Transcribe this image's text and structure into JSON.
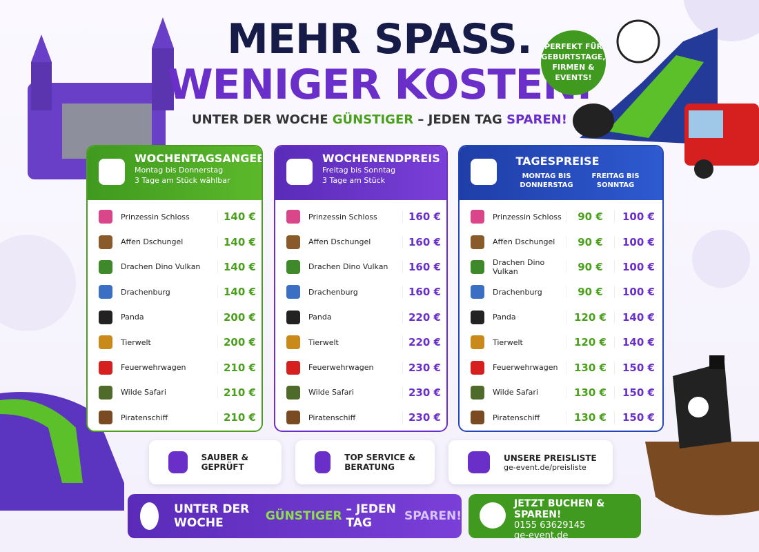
{
  "header": {
    "title_line1": "MEHR SPASS.",
    "title_line2": "WENIGER KOSTEN.",
    "subtitle": [
      "UNTER DER WOCHE",
      "GÜNSTIGER",
      "– JEDEN TAG",
      "SPAREN!"
    ]
  },
  "badge": [
    "PERFEKT FÜR",
    "GEBURTSTAGE,",
    "FIRMEN &",
    "EVENTS!"
  ],
  "panels": [
    {
      "title": "WOCHENTAGSANGEBOT",
      "lines": [
        "Montag bis Donnerstag",
        "3 Tage am Stück wählbar"
      ],
      "rows": [
        [
          "Prinzessin Schloss",
          "140 €"
        ],
        [
          "Affen Dschungel",
          "140 €"
        ],
        [
          "Drachen Dino Vulkan",
          "140 €"
        ],
        [
          "Drachenburg",
          "140 €"
        ],
        [
          "Panda",
          "200 €"
        ],
        [
          "Tierwelt",
          "200 €"
        ],
        [
          "Feuerwehrwagen",
          "210 €"
        ],
        [
          "Wilde Safari",
          "210 €"
        ],
        [
          "Piratenschiff",
          "210 €"
        ]
      ]
    },
    {
      "title": "WOCHENENDPREIS",
      "lines": [
        "Freitag bis Sonntag",
        "3 Tage am Stück"
      ],
      "rows": [
        [
          "Prinzessin Schloss",
          "160 €"
        ],
        [
          "Affen Dschungel",
          "160 €"
        ],
        [
          "Drachen Dino Vulkan",
          "160 €"
        ],
        [
          "Drachenburg",
          "160 €"
        ],
        [
          "Panda",
          "220 €"
        ],
        [
          "Tierwelt",
          "220 €"
        ],
        [
          "Feuerwehrwagen",
          "230 €"
        ],
        [
          "Wilde Safari",
          "230 €"
        ],
        [
          "Piratenschiff",
          "230 €"
        ]
      ]
    },
    {
      "title": "TAGESPREISE",
      "columns": [
        "MONTAG BIS DONNERSTAG",
        "FREITAG BIS SONNTAG"
      ],
      "rows": [
        [
          "Prinzessin Schloss",
          "90 €",
          "100 €"
        ],
        [
          "Affen Dschungel",
          "90 €",
          "100 €"
        ],
        [
          "Drachen Dino Vulkan",
          "90 €",
          "100 €"
        ],
        [
          "Drachenburg",
          "90 €",
          "100 €"
        ],
        [
          "Panda",
          "120 €",
          "140 €"
        ],
        [
          "Tierwelt",
          "120 €",
          "140 €"
        ],
        [
          "Feuerwehrwagen",
          "130 €",
          "150 €"
        ],
        [
          "Wilde Safari",
          "130 €",
          "150 €"
        ],
        [
          "Piratenschiff",
          "130 €",
          "150 €"
        ]
      ]
    }
  ],
  "features": [
    {
      "text": "SAUBER & GEPRÜFT"
    },
    {
      "text": "TOP SERVICE & BERATUNG"
    },
    {
      "text": "UNSERE PREISLISTE",
      "link": "ge-event.de/preisliste"
    }
  ],
  "banner": [
    "UNTER DER WOCHE",
    "GÜNSTIGER",
    "– JEDEN TAG",
    "SPAREN!"
  ],
  "cta": {
    "title": "JETZT BUCHEN & SPAREN!",
    "phone": "0155 63629145",
    "web": "ge-event.de"
  }
}
